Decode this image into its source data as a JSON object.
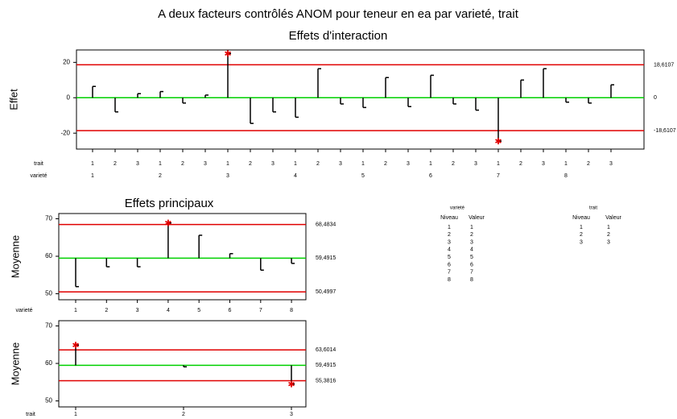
{
  "chart_data": [
    {
      "type": "anom",
      "title": "A deux facteurs contrôlés ANOM pour teneur en ea par varieté, trait",
      "subtitle": "Effets d'interaction",
      "ylabel": "Effet",
      "ylim": [
        -29,
        27
      ],
      "yticks": [
        20,
        0,
        -20
      ],
      "lines": [
        {
          "value": 18.6107,
          "label": "18,6107",
          "color": "#e00000"
        },
        {
          "value": 0,
          "color": "#00d000"
        },
        {
          "value": -18.6107,
          "label": "-18,6107",
          "color": "#e00000"
        }
      ],
      "center": 0,
      "marker_color": "#e00000",
      "xaxes": [
        {
          "label": "trait",
          "categories": [
            "1",
            "2",
            "3",
            "1",
            "2",
            "3",
            "1",
            "2",
            "3",
            "1",
            "2",
            "3",
            "1",
            "2",
            "3",
            "1",
            "2",
            "3",
            "1",
            "2",
            "3",
            "1",
            "2",
            "3"
          ]
        },
        {
          "label": "varieté",
          "categories": [
            "1",
            null,
            null,
            "2",
            null,
            null,
            "3",
            null,
            null,
            "4",
            null,
            null,
            "5",
            null,
            null,
            "6",
            null,
            null,
            "7",
            null,
            null,
            "8",
            null,
            null
          ]
        }
      ],
      "values": [
        6.4,
        -8,
        2.3,
        3.5,
        -3,
        1.5,
        25,
        -14.5,
        -8,
        -11,
        16.4,
        -3.5,
        -5.5,
        11.4,
        -5,
        12.7,
        -3.5,
        -7,
        -24.5,
        10,
        16.4,
        -2.5,
        -3,
        7.3
      ]
    },
    {
      "type": "anom",
      "title": "Effets principaux",
      "ylabel": "Moyenne",
      "ylim": [
        48.4,
        71.4
      ],
      "yticks": [
        70,
        60,
        50
      ],
      "lines": [
        {
          "value": 68.4834,
          "label": "68,4834",
          "color": "#e00000"
        },
        {
          "value": 59.4915,
          "label": "59,4915",
          "color": "#00d000"
        },
        {
          "value": 50.4997,
          "label": "50,4997",
          "color": "#e00000"
        }
      ],
      "center": 59.4915,
      "marker_color": "#e00000",
      "xaxes": [
        {
          "label": "varieté",
          "categories": [
            "1",
            "2",
            "3",
            "4",
            "5",
            "6",
            "7",
            "8"
          ]
        }
      ],
      "values": [
        51.9,
        57.2,
        57.2,
        68.9,
        65.6,
        60.7,
        56.3,
        58.1
      ]
    },
    {
      "type": "anom",
      "ylabel": "Moyenne",
      "ylim": [
        48.4,
        71.4
      ],
      "yticks": [
        70,
        60,
        50
      ],
      "lines": [
        {
          "value": 63.6014,
          "label": "63,6014",
          "color": "#e00000"
        },
        {
          "value": 59.4915,
          "label": "59,4915",
          "color": "#00d000"
        },
        {
          "value": 55.3816,
          "label": "55,3816",
          "color": "#e00000"
        }
      ],
      "center": 59.4915,
      "marker_color": "#e00000",
      "xaxes": [
        {
          "label": "trait",
          "categories": [
            "1",
            "2",
            "3"
          ]
        }
      ],
      "values": [
        64.9,
        59.1,
        54.5
      ]
    }
  ],
  "tables": [
    {
      "title": "varieté",
      "columns": [
        "Niveau",
        "Valeur"
      ],
      "rows": [
        [
          "1",
          "1"
        ],
        [
          "2",
          "2"
        ],
        [
          "3",
          "3"
        ],
        [
          "4",
          "4"
        ],
        [
          "5",
          "5"
        ],
        [
          "6",
          "6"
        ],
        [
          "7",
          "7"
        ],
        [
          "8",
          "8"
        ]
      ]
    },
    {
      "title": "trait",
      "columns": [
        "Niveau",
        "Valeur"
      ],
      "rows": [
        [
          "1",
          "1"
        ],
        [
          "2",
          "2"
        ],
        [
          "3",
          "3"
        ]
      ]
    }
  ]
}
